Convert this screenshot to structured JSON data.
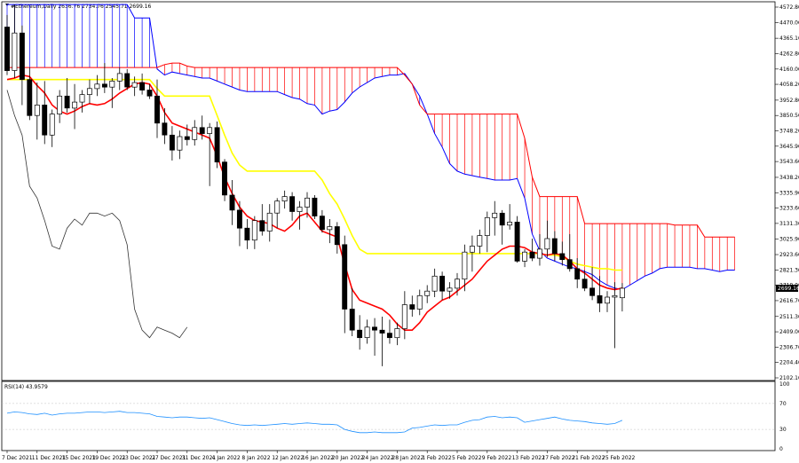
{
  "chart_data": {
    "type": "candlestick",
    "title": "#Ethereum,Daily  2636.76 2734.76 2545.71 2699.16",
    "last_price": 2699.16,
    "price_ylim": [
      2102.1,
      4572.8
    ],
    "price_ticks": [
      4572.8,
      4470.0,
      4365.1,
      4262.8,
      4160.0,
      4058.2,
      3952.8,
      3850.5,
      3748.2,
      3645.9,
      3543.6,
      3438.2,
      3335.9,
      3233.6,
      3131.3,
      3025.9,
      2923.6,
      2821.3,
      2719.0,
      2616.7,
      2511.3,
      2409.0,
      2306.7,
      2204.4,
      2102.1
    ],
    "x_ticks": [
      {
        "i": 0,
        "label": "7 Dec 2021"
      },
      {
        "i": 4,
        "label": "11 Dec 2021"
      },
      {
        "i": 8,
        "label": "15 Dec 2021"
      },
      {
        "i": 12,
        "label": "19 Dec 2021"
      },
      {
        "i": 16,
        "label": "23 Dec 2021"
      },
      {
        "i": 20,
        "label": "27 Dec 2021"
      },
      {
        "i": 24,
        "label": "31 Dec 2021"
      },
      {
        "i": 28,
        "label": "4 Jan 2022"
      },
      {
        "i": 32,
        "label": "8 Jan 2022"
      },
      {
        "i": 36,
        "label": "12 Jan 2022"
      },
      {
        "i": 40,
        "label": "16 Jan 2022"
      },
      {
        "i": 44,
        "label": "20 Jan 2022"
      },
      {
        "i": 48,
        "label": "24 Jan 2022"
      },
      {
        "i": 52,
        "label": "28 Jan 2022"
      },
      {
        "i": 56,
        "label": "1 Feb 2022"
      },
      {
        "i": 60,
        "label": "5 Feb 2022"
      },
      {
        "i": 64,
        "label": "9 Feb 2022"
      },
      {
        "i": 68,
        "label": "13 Feb 2022"
      },
      {
        "i": 72,
        "label": "17 Feb 2022"
      },
      {
        "i": 76,
        "label": "21 Feb 2022"
      },
      {
        "i": 80,
        "label": "25 Feb 2022"
      }
    ],
    "candles": [
      [
        4440,
        4520,
        4120,
        4150
      ],
      [
        4150,
        4590,
        4100,
        4400
      ],
      [
        4400,
        4450,
        3920,
        4090
      ],
      [
        4090,
        4170,
        3820,
        3850
      ],
      [
        3850,
        4070,
        3690,
        3920
      ],
      [
        3920,
        4080,
        3660,
        3720
      ],
      [
        3720,
        3890,
        3640,
        3860
      ],
      [
        3860,
        4020,
        3800,
        3980
      ],
      [
        3980,
        4100,
        3870,
        3900
      ],
      [
        3900,
        4060,
        3760,
        3940
      ],
      [
        3940,
        4020,
        3870,
        3990
      ],
      [
        3990,
        4090,
        3930,
        4030
      ],
      [
        4030,
        4120,
        3980,
        4060
      ],
      [
        4060,
        4200,
        4000,
        4040
      ],
      [
        4040,
        4100,
        3900,
        4080
      ],
      [
        4080,
        4170,
        4020,
        4130
      ],
      [
        4130,
        4160,
        4020,
        4040
      ],
      [
        4040,
        4110,
        3980,
        4070
      ],
      [
        4070,
        4130,
        3990,
        4020
      ],
      [
        4020,
        4060,
        3960,
        3980
      ],
      [
        3980,
        4090,
        3700,
        3800
      ],
      [
        3800,
        3900,
        3660,
        3720
      ],
      [
        3720,
        3780,
        3550,
        3620
      ],
      [
        3620,
        3750,
        3560,
        3710
      ],
      [
        3710,
        3790,
        3650,
        3690
      ],
      [
        3690,
        3820,
        3650,
        3770
      ],
      [
        3770,
        3850,
        3690,
        3730
      ],
      [
        3730,
        3800,
        3380,
        3770
      ],
      [
        3770,
        3810,
        3500,
        3540
      ],
      [
        3540,
        3560,
        3280,
        3320
      ],
      [
        3320,
        3420,
        3120,
        3220
      ],
      [
        3220,
        3280,
        2980,
        3100
      ],
      [
        3100,
        3160,
        2960,
        3020
      ],
      [
        3020,
        3180,
        2960,
        3150
      ],
      [
        3150,
        3260,
        3050,
        3080
      ],
      [
        3080,
        3260,
        3010,
        3200
      ],
      [
        3200,
        3300,
        3100,
        3280
      ],
      [
        3280,
        3350,
        3230,
        3310
      ],
      [
        3310,
        3340,
        3150,
        3210
      ],
      [
        3210,
        3280,
        3090,
        3240
      ],
      [
        3240,
        3340,
        3170,
        3300
      ],
      [
        3300,
        3320,
        3160,
        3180
      ],
      [
        3180,
        3220,
        3070,
        3090
      ],
      [
        3090,
        3160,
        3000,
        3110
      ],
      [
        3110,
        3140,
        2930,
        2990
      ],
      [
        2990,
        3050,
        2400,
        2560
      ],
      [
        2560,
        2700,
        2380,
        2420
      ],
      [
        2420,
        2520,
        2290,
        2370
      ],
      [
        2370,
        2490,
        2330,
        2440
      ],
      [
        2440,
        2500,
        2250,
        2420
      ],
      [
        2420,
        2510,
        2180,
        2400
      ],
      [
        2400,
        2490,
        2330,
        2370
      ],
      [
        2370,
        2470,
        2320,
        2430
      ],
      [
        2430,
        2680,
        2360,
        2590
      ],
      [
        2590,
        2650,
        2510,
        2560
      ],
      [
        2560,
        2690,
        2520,
        2650
      ],
      [
        2650,
        2720,
        2600,
        2680
      ],
      [
        2680,
        2830,
        2640,
        2780
      ],
      [
        2780,
        2810,
        2620,
        2680
      ],
      [
        2680,
        2740,
        2630,
        2700
      ],
      [
        2700,
        2800,
        2650,
        2760
      ],
      [
        2760,
        2990,
        2680,
        2940
      ],
      [
        2940,
        3050,
        2810,
        2980
      ],
      [
        2980,
        3090,
        2930,
        3050
      ],
      [
        3050,
        3210,
        2940,
        3170
      ],
      [
        3170,
        3280,
        3050,
        3200
      ],
      [
        3200,
        3220,
        2990,
        3120
      ],
      [
        3120,
        3260,
        3090,
        3140
      ],
      [
        3140,
        3180,
        2870,
        2880
      ],
      [
        2880,
        2960,
        2840,
        2940
      ],
      [
        2940,
        3030,
        2880,
        2900
      ],
      [
        2900,
        3060,
        2850,
        2960
      ],
      [
        2960,
        3150,
        2910,
        3030
      ],
      [
        3030,
        3080,
        2880,
        2930
      ],
      [
        2930,
        3010,
        2850,
        2890
      ],
      [
        2890,
        3060,
        2810,
        2830
      ],
      [
        2830,
        2900,
        2700,
        2760
      ],
      [
        2760,
        2820,
        2680,
        2700
      ],
      [
        2700,
        2840,
        2620,
        2650
      ],
      [
        2650,
        2780,
        2540,
        2600
      ],
      [
        2600,
        2680,
        2540,
        2640
      ],
      [
        2640,
        2740,
        2300,
        2650
      ],
      [
        2636,
        2734,
        2545,
        2699
      ]
    ],
    "tenkan_sen": [
      4090,
      4100,
      4120,
      4110,
      4050,
      4000,
      3920,
      3880,
      3860,
      3880,
      3910,
      3930,
      3920,
      3930,
      3960,
      4000,
      4030,
      4060,
      4070,
      4060,
      3980,
      3870,
      3800,
      3780,
      3760,
      3740,
      3720,
      3700,
      3580,
      3440,
      3330,
      3240,
      3180,
      3150,
      3140,
      3130,
      3100,
      3080,
      3120,
      3180,
      3200,
      3140,
      3080,
      3060,
      3040,
      2860,
      2690,
      2620,
      2600,
      2580,
      2560,
      2520,
      2460,
      2420,
      2420,
      2470,
      2540,
      2580,
      2620,
      2640,
      2680,
      2720,
      2760,
      2820,
      2880,
      2920,
      2960,
      2980,
      2980,
      2970,
      2940,
      2930,
      2920,
      2930,
      2920,
      2880,
      2830,
      2800,
      2760,
      2720,
      2700,
      2690,
      2700
    ],
    "kijun_sen": [
      4090,
      4090,
      4090,
      4090,
      4090,
      4090,
      4090,
      4090,
      4090,
      4090,
      4090,
      4090,
      4090,
      4090,
      4090,
      4090,
      4090,
      4090,
      4090,
      4090,
      4030,
      3980,
      3980,
      3980,
      3980,
      3980,
      3980,
      3980,
      3850,
      3720,
      3600,
      3520,
      3480,
      3480,
      3480,
      3480,
      3480,
      3480,
      3480,
      3480,
      3480,
      3480,
      3420,
      3330,
      3260,
      3160,
      3050,
      2960,
      2930,
      2930,
      2930,
      2930,
      2930,
      2930,
      2930,
      2930,
      2930,
      2930,
      2930,
      2930,
      2930,
      2930,
      2930,
      2930,
      2930,
      2930,
      2930,
      2930,
      2930,
      2930,
      2930,
      2930,
      2920,
      2920,
      2910,
      2880,
      2860,
      2850,
      2840,
      2830,
      2830,
      2820,
      2820
    ],
    "chikou_span": [
      4020,
      3850,
      3720,
      3380,
      3300,
      3150,
      2980,
      2960,
      3100,
      3160,
      3120,
      3200,
      3200,
      3180,
      3200,
      3150,
      2990,
      2560,
      2420,
      2370,
      2440,
      2420,
      2400,
      2370,
      2440
    ],
    "senkou_a": [
      4590,
      4590,
      4590,
      4590,
      4590,
      4590,
      4590,
      4590,
      4590,
      4590,
      4590,
      4590,
      4590,
      4590,
      4590,
      4590,
      4590,
      4500,
      4500,
      4500,
      4160,
      4120,
      4140,
      4130,
      4120,
      4110,
      4100,
      4100,
      4080,
      4060,
      4040,
      4020,
      4010,
      4010,
      4010,
      4010,
      4010,
      3990,
      3970,
      3960,
      3930,
      3920,
      3860,
      3880,
      3890,
      3940,
      4000,
      4040,
      4070,
      4100,
      4110,
      4120,
      4120,
      4130,
      4060,
      3980,
      3860,
      3730,
      3640,
      3530,
      3480,
      3460,
      3450,
      3440,
      3430,
      3420,
      3420,
      3420,
      3430,
      3300,
      3060,
      2950,
      2900,
      2880,
      2860,
      2840,
      2830,
      2810,
      2790,
      2750,
      2720,
      2700,
      2690,
      2720,
      2750,
      2780,
      2800,
      2830,
      2840,
      2840,
      2840,
      2840,
      2830,
      2830,
      2820,
      2810,
      2820,
      2820
    ],
    "senkou_b": [
      4170,
      4170,
      4170,
      4170,
      4170,
      4170,
      4170,
      4170,
      4170,
      4170,
      4170,
      4170,
      4170,
      4170,
      4170,
      4170,
      4170,
      4170,
      4170,
      4170,
      4170,
      4190,
      4200,
      4200,
      4180,
      4170,
      4170,
      4170,
      4170,
      4170,
      4170,
      4170,
      4170,
      4170,
      4170,
      4170,
      4170,
      4170,
      4170,
      4170,
      4170,
      4170,
      4170,
      4170,
      4170,
      4170,
      4170,
      4170,
      4170,
      4170,
      4170,
      4170,
      4170,
      4120,
      4060,
      3920,
      3860,
      3860,
      3860,
      3860,
      3860,
      3860,
      3860,
      3860,
      3860,
      3860,
      3860,
      3860,
      3860,
      3700,
      3440,
      3310,
      3310,
      3310,
      3310,
      3310,
      3310,
      3130,
      3130,
      3130,
      3130,
      3130,
      3130,
      3130,
      3130,
      3130,
      3130,
      3130,
      3130,
      3120,
      3120,
      3120,
      3120,
      3040,
      3040,
      3040,
      3040,
      3040
    ],
    "rsi_label": "RSI(14) 43.9579",
    "rsi_ylim": [
      0,
      100
    ],
    "rsi_ticks": [
      100,
      70,
      30,
      0
    ],
    "rsi": [
      55,
      57,
      56,
      54,
      53,
      55,
      52,
      54,
      55,
      55,
      56,
      57,
      57,
      56,
      57,
      58,
      56,
      56,
      55,
      54,
      50,
      49,
      48,
      49,
      49,
      48,
      47,
      48,
      45,
      42,
      39,
      37,
      36,
      37,
      36,
      37,
      38,
      39,
      38,
      39,
      40,
      39,
      38,
      38,
      37,
      30,
      27,
      25,
      25,
      26,
      25,
      25,
      25,
      26,
      32,
      33,
      35,
      37,
      36,
      37,
      37,
      41,
      44,
      45,
      49,
      50,
      48,
      49,
      48,
      41,
      43,
      45,
      47,
      49,
      46,
      44,
      43,
      42,
      40,
      39,
      38,
      39,
      44
    ]
  }
}
